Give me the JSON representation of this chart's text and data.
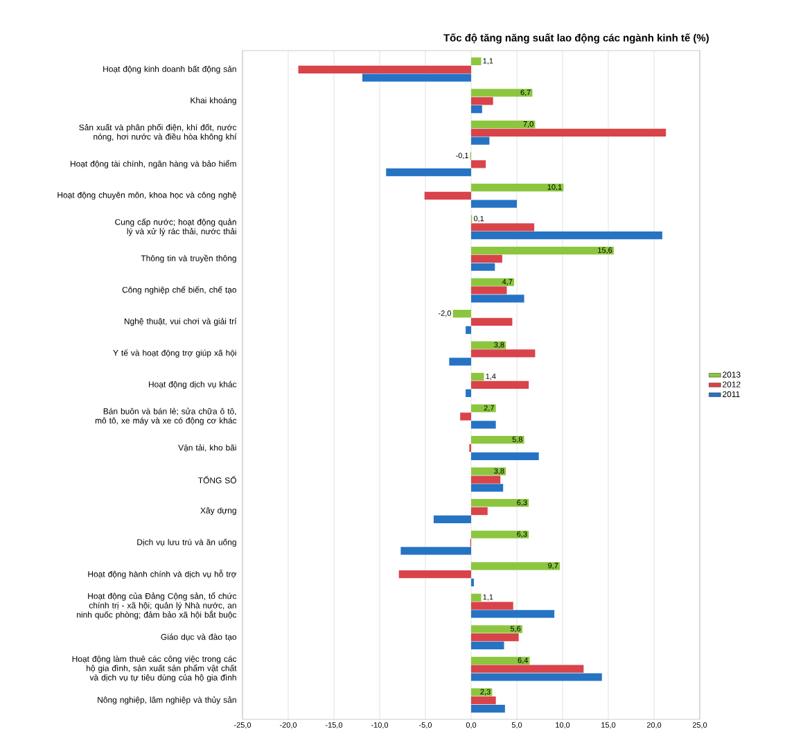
{
  "chart_data": {
    "type": "bar",
    "orientation": "horizontal",
    "title": "Tốc độ tăng năng suất lao động các ngành kinh tế (%)",
    "categories": [
      "Hoạt động kinh doanh bất động sản",
      "Khai khoáng",
      "Sản xuất và phân phối điện, khí đốt, nước nóng, hơi nước và điều hòa không khí",
      "Hoạt động tài chính, ngân hàng và bảo hiểm",
      "Hoạt động chuyên môn, khoa học và công nghệ",
      "Cung cấp nước; hoạt động quản lý và xử lý rác thải, nước thải",
      "Thông tin và truyền thông",
      "Công nghiệp chế biến, chế tạo",
      "Nghệ thuật, vui chơi và giải trí",
      "Y tế và hoạt động trợ giúp xã hội",
      "Hoạt động dịch vụ khác",
      "Bán buôn và bán lẻ; sửa chữa ô tô, mô tô, xe máy và xe có động cơ khác",
      "Vận tải, kho bãi",
      "TỔNG SỐ",
      "Xây dựng",
      "Dịch vụ lưu trú và ăn uống",
      "Hoạt động hành chính và dịch vụ hỗ trợ",
      "Hoạt động của Đảng Cộng sản, tổ chức chính trị - xã hội; quản lý Nhà nước, an ninh quốc phòng; đảm bảo xã hội bắt buộc",
      "Giáo dục và đào tạo",
      "Hoạt động làm thuê các công việc trong các hộ gia đình, sản xuất sản phẩm vật chất và dịch vụ tự tiêu dùng của hộ gia đình",
      "Nông nghiệp, lâm nghiệp và thủy sản"
    ],
    "series": [
      {
        "name": "2013",
        "color": "#8cc63f",
        "values": [
          1.1,
          6.7,
          7.0,
          -0.1,
          10.1,
          0.1,
          15.6,
          4.7,
          -2.0,
          3.8,
          1.4,
          2.7,
          5.8,
          3.8,
          6.3,
          6.3,
          9.7,
          1.1,
          5.6,
          6.4,
          2.3
        ],
        "value_labels": [
          "1,1",
          "6,7",
          "7,0",
          "-0,1",
          "10,1",
          "0,1",
          "15,6",
          "4,7",
          "-2,0",
          "3,8",
          "1,4",
          "2,7",
          "5,8",
          "3,8",
          "6,3",
          "6,3",
          "9,7",
          "1,1",
          "5,6",
          "6,4",
          "2,3"
        ]
      },
      {
        "name": "2012",
        "color": "#d9434a",
        "values": [
          -18.9,
          2.4,
          21.3,
          1.6,
          -5.1,
          6.9,
          3.4,
          3.9,
          4.5,
          7.0,
          6.3,
          -1.2,
          -0.2,
          3.2,
          1.8,
          -0.1,
          -7.9,
          4.6,
          5.2,
          12.3,
          2.7
        ]
      },
      {
        "name": "2011",
        "color": "#2673c4",
        "values": [
          -11.9,
          1.2,
          2.0,
          -9.3,
          5.0,
          20.9,
          2.6,
          5.8,
          -0.6,
          -2.4,
          -0.6,
          2.7,
          7.4,
          3.5,
          -4.1,
          -7.7,
          0.3,
          9.1,
          3.6,
          14.3,
          3.7
        ]
      }
    ],
    "xlim": [
      -25,
      25
    ],
    "xticks": [
      {
        "value": -25,
        "label": "-25,0"
      },
      {
        "value": -20,
        "label": "-20,0"
      },
      {
        "value": -15,
        "label": "-15,0"
      },
      {
        "value": -10,
        "label": "-10,0"
      },
      {
        "value": -5,
        "label": "-5,0"
      },
      {
        "value": 0,
        "label": "0,0"
      },
      {
        "value": 5,
        "label": "5,0"
      },
      {
        "value": 10,
        "label": "10,0"
      },
      {
        "value": 15,
        "label": "15,0"
      },
      {
        "value": 20,
        "label": "20,0"
      },
      {
        "value": 25,
        "label": "25,0"
      }
    ],
    "grid": "x",
    "legend": "right"
  }
}
